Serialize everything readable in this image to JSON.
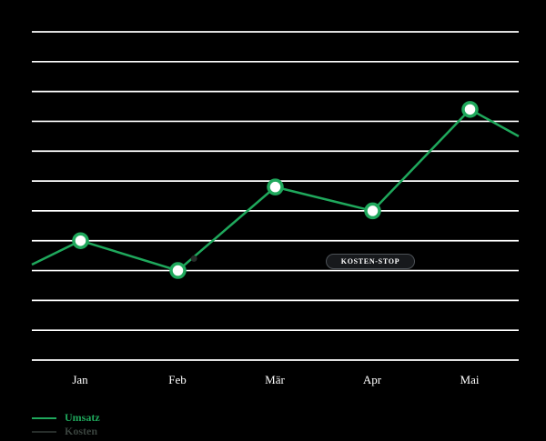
{
  "chart_data": {
    "type": "line",
    "title": "",
    "xlabel": "",
    "ylabel": "",
    "categories": [
      "Jan",
      "Feb",
      "Mär",
      "Apr",
      "Mai"
    ],
    "series": [
      {
        "name": "Umsatz",
        "color": "#1fa85c",
        "values": [
          40,
          30,
          58,
          50,
          84
        ],
        "edge_start": 32,
        "edge_end": 75,
        "marker": "circle-white-fill"
      },
      {
        "name": "Kosten",
        "color": "#272d2a",
        "label_color": "#3a433e",
        "values": []
      }
    ],
    "ylim": [
      0,
      110
    ],
    "grid_step": 10,
    "grid_color": "#ffffff",
    "background_color": "#000000",
    "legend_position": "bottom-left",
    "annotation": {
      "label": "KOSTEN-STOP",
      "dot_value": 34,
      "dot_x_frac": 0.333
    }
  }
}
